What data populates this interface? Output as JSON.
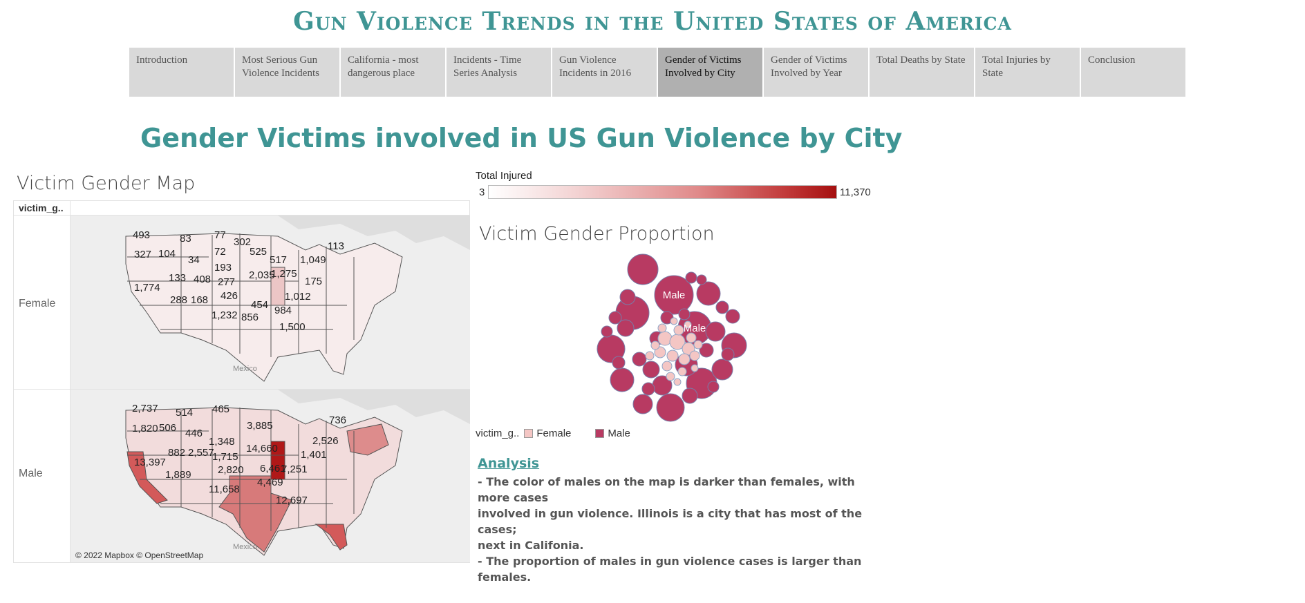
{
  "story_title": "Gun Violence Trends in the United States of America",
  "nav": [
    {
      "label": "Introduction",
      "active": false
    },
    {
      "label": "Most Serious Gun Violence Incidents",
      "active": false
    },
    {
      "label": "California - most dangerous place",
      "active": false
    },
    {
      "label": "Incidents - Time Series Analysis",
      "active": false
    },
    {
      "label": "Gun Violence Incidents in 2016",
      "active": false
    },
    {
      "label": "Gender of Victims Involved by City",
      "active": true
    },
    {
      "label": "Gender of Victims Involved by Year",
      "active": false
    },
    {
      "label": "Total Deaths by State",
      "active": false
    },
    {
      "label": "Total Injuries by State",
      "active": false
    },
    {
      "label": "Conclusion",
      "active": false
    }
  ],
  "page_title": "Gender Victims involved in US Gun Violence by City",
  "map": {
    "title": "Victim Gender Map",
    "header_label": "victim_g..",
    "rows": [
      "Female",
      "Male"
    ],
    "country_label": "Mexico",
    "credit": "© 2022 Mapbox © OpenStreetMap"
  },
  "color_legend": {
    "title": "Total Injured",
    "min": "3",
    "max": "11,370"
  },
  "bubble": {
    "title": "Victim Gender Proportion",
    "bubble_label": "Male"
  },
  "gender_legend": {
    "label": "victim_g..",
    "female": "Female",
    "male": "Male"
  },
  "colors": {
    "teal": "#3f9594",
    "male": "#b83a62",
    "female": "#f4c6c4",
    "nav_active": "#b0b0b0",
    "nav": "#d9d9d9"
  },
  "analysis": {
    "title": "Analysis",
    "lines": [
      "- The color of males on the map is darker than females, with more cases",
      "involved in gun violence. Illinois is a city that has most of the cases;",
      "next in Califonia.",
      "- The proportion of males in gun violence cases is larger than females."
    ]
  },
  "chart_data": [
    {
      "type": "map",
      "title": "Victim Gender Map",
      "series": [
        {
          "name": "Female",
          "values": [
            493,
            83,
            77,
            302,
            113,
            327,
            104,
            34,
            72,
            525,
            193,
            517,
            1049,
            133,
            408,
            2035,
            1275,
            175,
            1774,
            277,
            426,
            1012,
            288,
            168,
            454,
            984,
            1232,
            856,
            1500
          ]
        },
        {
          "name": "Male",
          "values": [
            2737,
            514,
            465,
            736,
            1820,
            506,
            446,
            3885,
            1348,
            2526,
            882,
            2557,
            1715,
            14660,
            1401,
            13397,
            2820,
            6461,
            7251,
            1889,
            4469,
            11658,
            12697
          ]
        }
      ]
    },
    {
      "type": "bubble",
      "title": "Victim Gender Proportion",
      "series": [
        {
          "name": "Female"
        },
        {
          "name": "Male"
        }
      ]
    }
  ]
}
